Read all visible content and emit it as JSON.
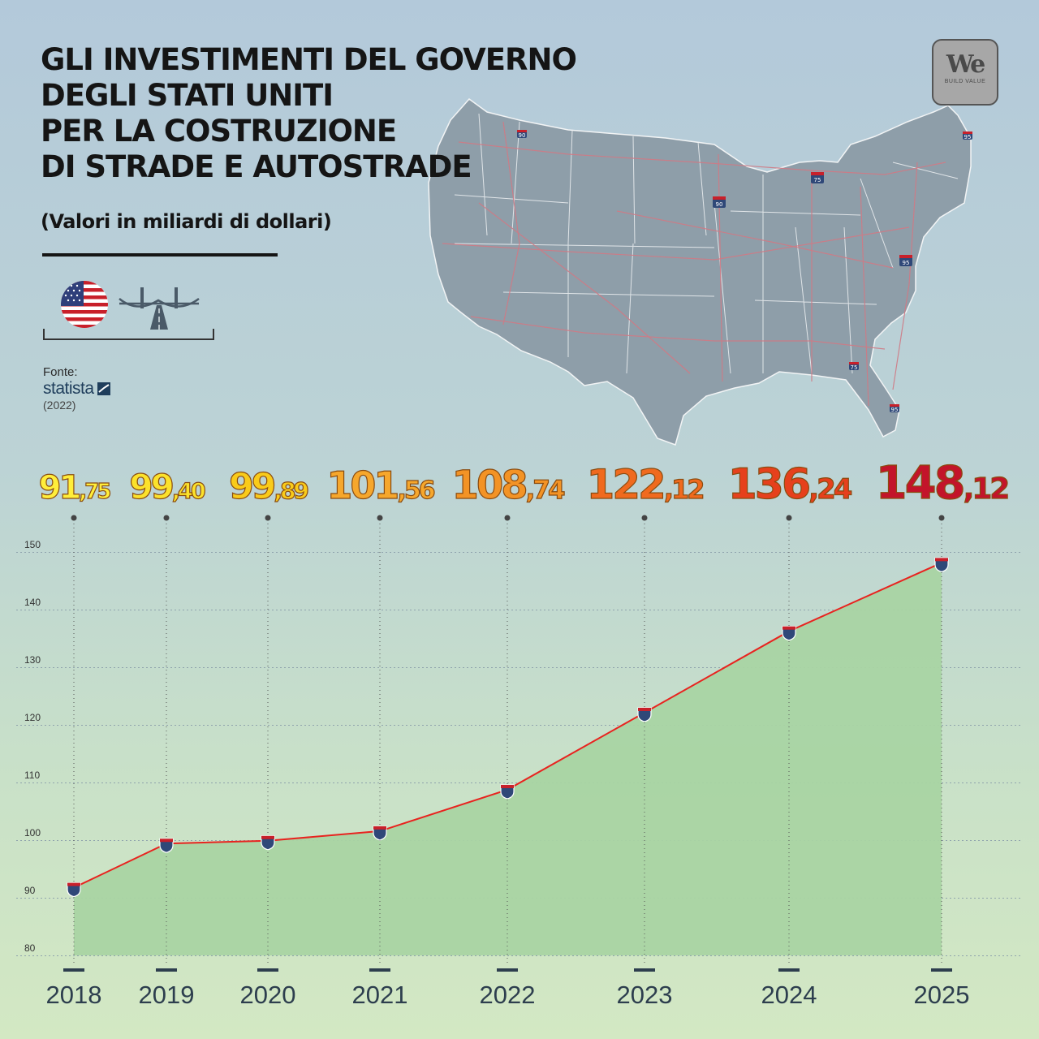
{
  "title_lines": [
    "GLI INVESTIMENTI DEL GOVERNO",
    "DEGLI STATI UNITI",
    "PER LA COSTRUZIONE",
    "DI STRADE E AUTOSTRADE"
  ],
  "subtitle": "(Valori in miliardi di dollari)",
  "source": {
    "label": "Fonte:",
    "brand": "statista",
    "year": "(2022)"
  },
  "logo": {
    "main": "We",
    "tagline": "BUILD VALUE"
  },
  "icons": [
    "us-flag-icon",
    "bridge-road-icon",
    "statista-logo-icon",
    "interstate-shield-icon"
  ],
  "map_shield_labels": [
    "90",
    "90",
    "75",
    "95",
    "95",
    "75",
    "95"
  ],
  "colors": {
    "line": "#e8231f",
    "area": "#a9d4a3",
    "marker_top": "#c8202a",
    "marker_body": "#2f4878",
    "map_fill": "#8e9ea9",
    "map_roads": "#d07a85",
    "value_gradient": [
      "#ffee3a",
      "#fbe22b",
      "#f9cb1a",
      "#f6a72c",
      "#f39325",
      "#f06a1e",
      "#e6401c",
      "#c3142a"
    ]
  },
  "chart_data": {
    "type": "area",
    "title": "GLI INVESTIMENTI DEL GOVERNO DEGLI STATI UNITI PER LA COSTRUZIONE DI STRADE E AUTOSTRADE",
    "subtitle": "(Valori in miliardi di dollari)",
    "categories": [
      "2018",
      "2019",
      "2020",
      "2021",
      "2022",
      "2023",
      "2024",
      "2025"
    ],
    "values": [
      91.75,
      99.4,
      99.89,
      101.56,
      108.74,
      122.12,
      136.24,
      148.12
    ],
    "value_labels": [
      {
        "int": "91",
        "dec": ",75"
      },
      {
        "int": "99",
        "dec": ",40"
      },
      {
        "int": "99",
        "dec": ",89"
      },
      {
        "int": "101",
        "dec": ",56"
      },
      {
        "int": "108",
        "dec": ",74"
      },
      {
        "int": "122",
        "dec": ",12"
      },
      {
        "int": "136",
        "dec": ",24"
      },
      {
        "int": "148",
        "dec": ",12"
      }
    ],
    "yticks": [
      "80",
      "90",
      "100",
      "110",
      "120",
      "130",
      "140",
      "150"
    ],
    "ylim": [
      80,
      150
    ],
    "grid": true,
    "legend": "none"
  }
}
